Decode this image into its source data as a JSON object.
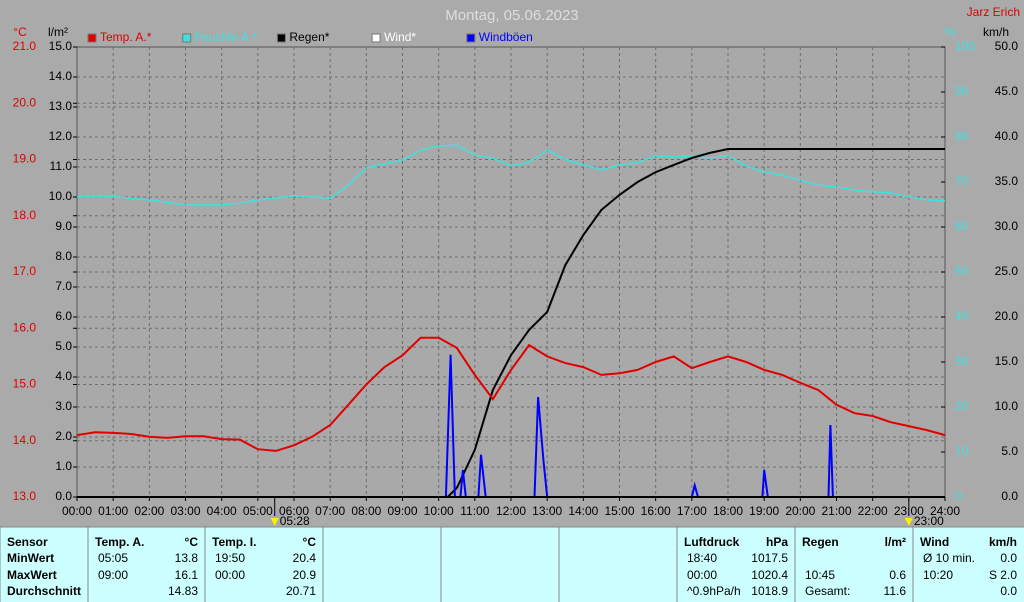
{
  "chart_data": {
    "type": "line",
    "title": "Montag, 05.06.2023",
    "author": "Jarz Erich",
    "grid": true,
    "xlim": [
      0,
      24
    ],
    "xticks": [
      {
        "value": 0,
        "label": "00:00"
      },
      {
        "value": 1,
        "label": "01:00"
      },
      {
        "value": 2,
        "label": "02:00"
      },
      {
        "value": 3,
        "label": "03:00"
      },
      {
        "value": 4,
        "label": "04:00"
      },
      {
        "value": 5,
        "label": "05:00"
      },
      {
        "value": 6,
        "label": "06:00"
      },
      {
        "value": 7,
        "label": "07:00"
      },
      {
        "value": 8,
        "label": "08:00"
      },
      {
        "value": 9,
        "label": "09:00"
      },
      {
        "value": 10,
        "label": "10:00"
      },
      {
        "value": 11,
        "label": "11:00"
      },
      {
        "value": 12,
        "label": "12:00"
      },
      {
        "value": 13,
        "label": "13:00"
      },
      {
        "value": 14,
        "label": "14:00"
      },
      {
        "value": 15,
        "label": "15:00"
      },
      {
        "value": 16,
        "label": "16:00"
      },
      {
        "value": 17,
        "label": "17:00"
      },
      {
        "value": 18,
        "label": "18:00"
      },
      {
        "value": 19,
        "label": "19:00"
      },
      {
        "value": 20,
        "label": "20:00"
      },
      {
        "value": 21,
        "label": "21:00"
      },
      {
        "value": 22,
        "label": "22:00"
      },
      {
        "value": 23,
        "label": "23:00"
      },
      {
        "value": 24,
        "label": "24:00"
      }
    ],
    "markers": [
      {
        "value": 5.4667,
        "label": "05:28"
      },
      {
        "value": 23,
        "label": "23:00"
      }
    ],
    "axes": [
      {
        "label": "°C",
        "color": "#e00000",
        "lim": [
          13,
          21
        ],
        "ticks": [
          {
            "value": 13,
            "label": "13.0"
          },
          {
            "value": 14,
            "label": "14.0"
          },
          {
            "value": 15,
            "label": "15.0"
          },
          {
            "value": 16,
            "label": "16.0"
          },
          {
            "value": 17,
            "label": "17.0"
          },
          {
            "value": 18,
            "label": "18.0"
          },
          {
            "value": 19,
            "label": "19.0"
          },
          {
            "value": 20,
            "label": "20.0"
          },
          {
            "value": 21,
            "label": "21.0"
          }
        ]
      },
      {
        "label": "l/m²",
        "color": "#000000",
        "lim": [
          0,
          15
        ],
        "ticks": [
          {
            "value": 0,
            "label": "0.0"
          },
          {
            "value": 1,
            "label": "1.0"
          },
          {
            "value": 2,
            "label": "2.0"
          },
          {
            "value": 3,
            "label": "3.0"
          },
          {
            "value": 4,
            "label": "4.0"
          },
          {
            "value": 5,
            "label": "5.0"
          },
          {
            "value": 6,
            "label": "6.0"
          },
          {
            "value": 7,
            "label": "7.0"
          },
          {
            "value": 8,
            "label": "8.0"
          },
          {
            "value": 9,
            "label": "9.0"
          },
          {
            "value": 10,
            "label": "10.0"
          },
          {
            "value": 11,
            "label": "11.0"
          },
          {
            "value": 12,
            "label": "12.0"
          },
          {
            "value": 13,
            "label": "13.0"
          },
          {
            "value": 14,
            "label": "14.0"
          },
          {
            "value": 15,
            "label": "15.0"
          }
        ]
      },
      {
        "label": "%",
        "color": "#40e0e0",
        "lim": [
          0,
          100
        ],
        "ticks": [
          0,
          10,
          20,
          30,
          40,
          50,
          60,
          70,
          80,
          90,
          100
        ]
      },
      {
        "label": "km/h",
        "color": "#000000",
        "lim": [
          0,
          50
        ],
        "ticks": [
          {
            "value": 0,
            "label": "0.0"
          },
          {
            "value": 5,
            "label": "5.0"
          },
          {
            "value": 10,
            "label": "10.0"
          },
          {
            "value": 15,
            "label": "15.0"
          },
          {
            "value": 20,
            "label": "20.0"
          },
          {
            "value": 25,
            "label": "25.0"
          },
          {
            "value": 30,
            "label": "30.0"
          },
          {
            "value": 35,
            "label": "35.0"
          },
          {
            "value": 40,
            "label": "40.0"
          },
          {
            "value": 45,
            "label": "45.0"
          },
          {
            "value": 50,
            "label": "50.0"
          }
        ]
      }
    ],
    "series": [
      {
        "name": "Temp. A.*",
        "color": "#e00000",
        "axis": "°C",
        "x": [
          0,
          0.5,
          1,
          1.5,
          2,
          2.5,
          3,
          3.5,
          4,
          4.5,
          5,
          5.5,
          6,
          6.5,
          7,
          7.5,
          8,
          8.5,
          9,
          9.5,
          10,
          10.5,
          11,
          11.5,
          12,
          12.5,
          13,
          13.5,
          14,
          14.5,
          15,
          15.5,
          16,
          16.5,
          17,
          17.5,
          18,
          18.5,
          19,
          19.5,
          20,
          20.5,
          21,
          21.5,
          22,
          22.5,
          23,
          23.5,
          24
        ],
        "values": [
          14.1,
          14.15,
          14.14,
          14.12,
          14.07,
          14.05,
          14.08,
          14.08,
          14.03,
          14.02,
          13.85,
          13.82,
          13.92,
          14.07,
          14.28,
          14.64,
          15.0,
          15.31,
          15.52,
          15.83,
          15.83,
          15.65,
          15.17,
          14.74,
          15.26,
          15.7,
          15.5,
          15.38,
          15.31,
          15.17,
          15.2,
          15.26,
          15.4,
          15.5,
          15.29,
          15.4,
          15.5,
          15.4,
          15.26,
          15.17,
          15.03,
          14.9,
          14.64,
          14.49,
          14.44,
          14.33,
          14.26,
          14.19,
          14.1
        ]
      },
      {
        "name": "Feuchte A.*",
        "color": "#40e0e0",
        "axis": "%",
        "x": [
          0,
          0.5,
          1,
          1.5,
          2,
          2.5,
          3,
          3.5,
          4,
          4.5,
          5,
          5.5,
          6,
          6.5,
          7,
          7.5,
          8,
          8.5,
          9,
          9.5,
          10,
          10.5,
          11,
          11.5,
          12,
          12.5,
          13,
          13.5,
          14,
          14.5,
          15,
          15.5,
          16,
          16.5,
          17,
          17.5,
          18,
          18.5,
          19,
          19.5,
          20,
          20.5,
          21,
          21.5,
          22,
          22.5,
          23,
          23.5,
          24
        ],
        "values": [
          66.7,
          66.8,
          66.7,
          66.4,
          66,
          65.5,
          64.9,
          64.9,
          64.9,
          65.3,
          66,
          66.5,
          66.9,
          66.7,
          66.4,
          69.3,
          73.1,
          74,
          74.9,
          77.1,
          78,
          78.2,
          76,
          75.3,
          73.6,
          74.3,
          77.1,
          75,
          73.8,
          72.7,
          73.8,
          74.3,
          75.8,
          75.6,
          75.8,
          75.3,
          75.8,
          73.6,
          72.2,
          71.5,
          70.4,
          69.3,
          68.9,
          68.2,
          67.8,
          67.6,
          66.7,
          66,
          65.8
        ]
      },
      {
        "name": "Regen*",
        "color": "#000000",
        "axis": "l/m²",
        "x": [
          0,
          10.25,
          10.5,
          11,
          11.5,
          12,
          12.5,
          13,
          13.5,
          14,
          14.5,
          15,
          15.5,
          16,
          16.5,
          17,
          17.5,
          18,
          24
        ],
        "values": [
          0,
          0,
          0.3,
          1.57,
          3.57,
          4.73,
          5.57,
          6.17,
          7.73,
          8.73,
          9.57,
          10.07,
          10.5,
          10.83,
          11.07,
          11.3,
          11.47,
          11.6,
          11.6
        ]
      },
      {
        "name": "Wind*",
        "color": "#ffffff",
        "axis": "km/h",
        "x": [
          0,
          24
        ],
        "values": [
          0,
          0
        ]
      },
      {
        "name": "Windböen",
        "color": "#0000ff",
        "axis": "km/h",
        "x": [
          0,
          10.2,
          10.33,
          10.45,
          10.6,
          10.67,
          10.75,
          11.1,
          11.17,
          11.3,
          12.65,
          12.75,
          12.9,
          13.0,
          17.0,
          17.08,
          17.17,
          18.95,
          19.0,
          19.1,
          20.78,
          20.83,
          20.9,
          24
        ],
        "values": [
          0,
          0,
          15.8,
          0,
          0,
          3,
          0,
          0,
          4.7,
          0,
          0,
          11.1,
          4,
          0,
          0,
          1.3,
          0,
          0,
          3,
          0,
          0,
          8,
          0,
          0
        ]
      }
    ]
  },
  "table": {
    "columns": [
      {
        "name": "Sensor",
        "rows": [
          "MinWert",
          "MaxWert",
          "Durchschnitt"
        ]
      },
      {
        "name": "Temp. A.",
        "unit": "°C",
        "rows": [
          [
            "05:05",
            "13.8"
          ],
          [
            "09:00",
            "16.1"
          ],
          [
            null,
            "14.83"
          ]
        ]
      },
      {
        "name": "Temp. I.",
        "unit": "°C",
        "rows": [
          [
            "19:50",
            "20.4"
          ],
          [
            "00:00",
            "20.9"
          ],
          [
            null,
            "20.71"
          ]
        ]
      },
      {
        "name": "Luftdruck",
        "unit": "hPa",
        "rows": [
          [
            "18:40",
            "1017.5"
          ],
          [
            "00:00",
            "1020.4"
          ],
          [
            "^0.9hPa/h",
            "1018.9"
          ]
        ]
      },
      {
        "name": "Regen",
        "unit": "l/m²",
        "rows": [
          [
            null,
            null
          ],
          [
            "10:45",
            "0.6"
          ],
          [
            "Gesamt:",
            "11.6"
          ]
        ]
      },
      {
        "name": "Wind",
        "unit": "km/h",
        "rows": [
          [
            "Ø 10 min.",
            "0.0"
          ],
          [
            "10:20",
            "S 2.0"
          ],
          [
            null,
            "0.0"
          ]
        ]
      }
    ]
  }
}
